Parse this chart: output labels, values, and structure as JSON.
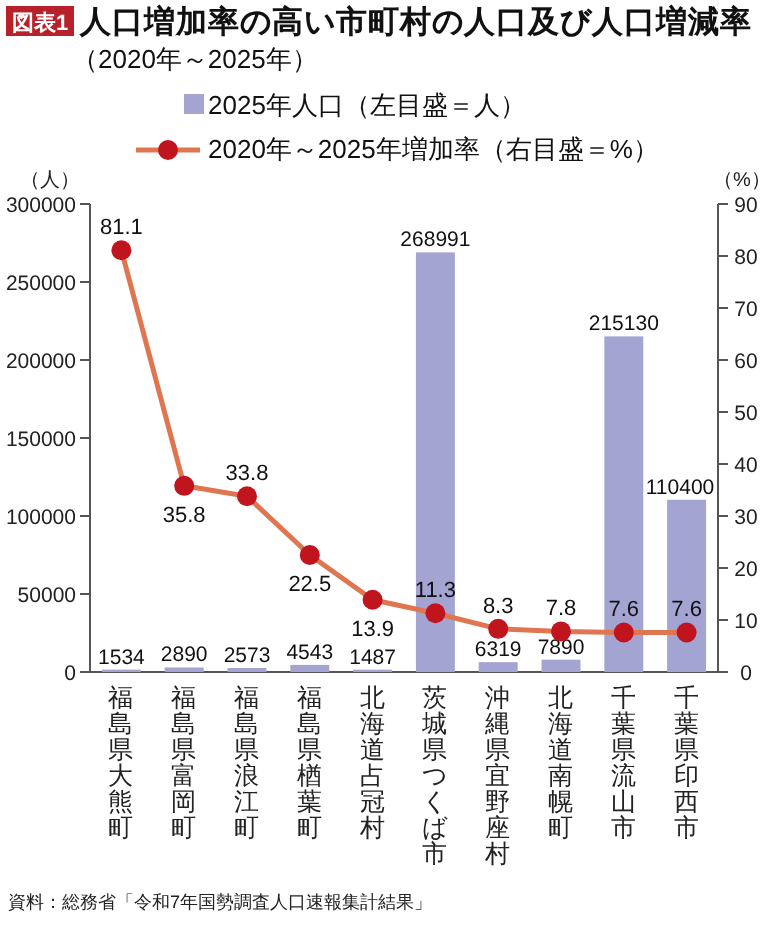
{
  "chart_data": {
    "type": "bar",
    "title": "人口増加率の高い市町村の人口及び人口増減率",
    "subtitle": "（2020年～2025年）",
    "ylabel": "（人）",
    "y2label": "（%）",
    "annotations": [
      "図表1",
      "資料：総務省「令和7年国勢調査人口速報集計結果」"
    ],
    "categories": [
      "福島県大熊町",
      "福島県富岡町",
      "福島県浪江町",
      "福島県楢葉町",
      "北海道占冠村",
      "茨城県つくば市",
      "沖縄県宜野座村",
      "北海道南幌町",
      "千葉県流山市",
      "千葉県印西市"
    ],
    "series": [
      {
        "name": "2025年人口（左目盛＝人）",
        "type": "bar",
        "color": "#a4a4d2",
        "values": [
          1534,
          2890,
          2573,
          4543,
          1487,
          268991,
          6319,
          7890,
          215130,
          110400
        ]
      },
      {
        "name": "2020年～2025年増加率（右目盛＝%）",
        "type": "line",
        "axis": "y2",
        "color": "#df7650",
        "marker": "circle",
        "values": [
          81.1,
          35.8,
          33.8,
          22.5,
          13.9,
          11.3,
          8.3,
          7.8,
          7.6,
          7.6
        ]
      }
    ],
    "ylim": [
      0,
      300000
    ],
    "yticks": [
      0,
      50000,
      100000,
      150000,
      200000,
      250000,
      300000
    ],
    "y2lim": [
      0,
      90
    ],
    "y2ticks": [
      0,
      10,
      20,
      30,
      40,
      50,
      60,
      70,
      80,
      90
    ],
    "data_labels": true,
    "legend": "top",
    "grid": false
  }
}
